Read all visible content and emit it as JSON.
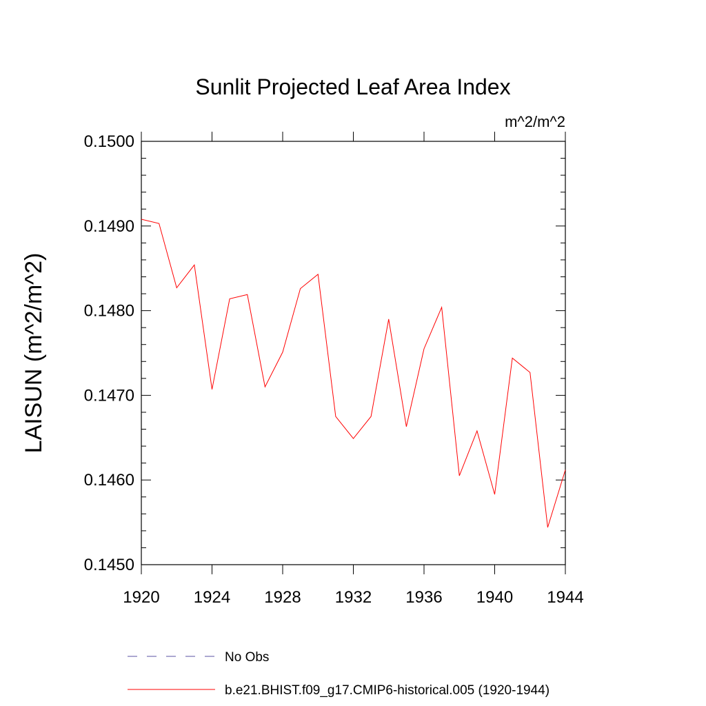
{
  "chart_data": {
    "type": "line",
    "title": "Sunlit Projected Leaf Area Index",
    "units": "m^2/m^2",
    "xlabel": "",
    "ylabel": "LAISUN  (m^2/m^2)",
    "xlim": [
      1920,
      1944
    ],
    "ylim": [
      0.145,
      0.15
    ],
    "x_ticks": [
      1920,
      1924,
      1928,
      1932,
      1936,
      1940,
      1944
    ],
    "x_tick_labels": [
      "1920",
      "1924",
      "1928",
      "1932",
      "1936",
      "1940",
      "1944"
    ],
    "y_ticks": [
      0.145,
      0.146,
      0.147,
      0.148,
      0.149,
      0.15
    ],
    "y_tick_labels": [
      "0.1450",
      "0.1460",
      "0.1470",
      "0.1480",
      "0.1490",
      "0.1500"
    ],
    "grid": false,
    "legend_position": "bottom",
    "series": [
      {
        "name": "b.e21.BHIST.f09_g17.CMIP6-historical.005 (1920-1944)",
        "color": "#ff0000",
        "style": "solid",
        "x": [
          1920,
          1921,
          1922,
          1923,
          1924,
          1925,
          1926,
          1927,
          1928,
          1929,
          1930,
          1931,
          1932,
          1933,
          1934,
          1935,
          1936,
          1937,
          1938,
          1939,
          1940,
          1941,
          1942,
          1943,
          1944
        ],
        "y": [
          0.14908,
          0.14903,
          0.14827,
          0.14854,
          0.14707,
          0.14814,
          0.14819,
          0.1471,
          0.14751,
          0.14826,
          0.14843,
          0.14675,
          0.14649,
          0.14675,
          0.1479,
          0.14663,
          0.14755,
          0.14804,
          0.14605,
          0.14658,
          0.14583,
          0.14744,
          0.14727,
          0.14544,
          0.14612
        ]
      }
    ],
    "legend": [
      {
        "label": "No Obs",
        "color": "#5a50a0",
        "style": "dashed"
      },
      {
        "label": "b.e21.BHIST.f09_g17.CMIP6-historical.005 (1920-1944)",
        "color": "#ff0000",
        "style": "solid"
      }
    ]
  }
}
